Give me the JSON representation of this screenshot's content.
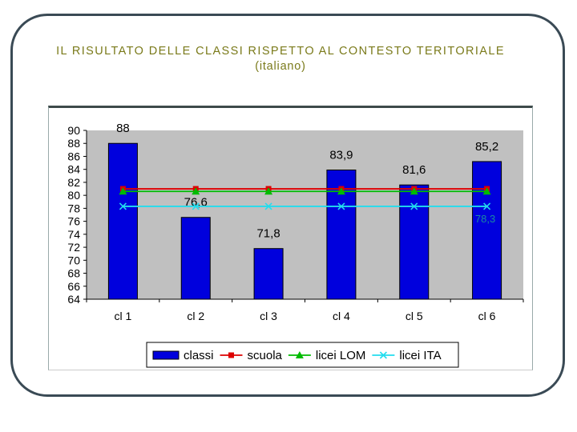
{
  "title": {
    "line1": "IL RISULTATO DELLE CLASSI RISPETTO AL CONTESTO TERITORIALE",
    "line2": "(italiano)"
  },
  "colors": {
    "plot_bg": "#c0c0c0",
    "bar": "#0000dd",
    "scuola": "#dd0000",
    "licei_lom": "#00bb00",
    "licei_ita": "#22ddee",
    "title": "#7a7a1a"
  },
  "chart_data": {
    "type": "bar",
    "categories": [
      "cl 1",
      "cl 2",
      "cl 3",
      "cl 4",
      "cl 5",
      "cl 6"
    ],
    "ylim": [
      64,
      90
    ],
    "yticks": [
      64,
      66,
      68,
      70,
      72,
      74,
      76,
      78,
      80,
      82,
      84,
      86,
      88,
      90
    ],
    "series": [
      {
        "name": "classi",
        "kind": "bar",
        "values": [
          88,
          76.6,
          71.8,
          83.9,
          81.6,
          85.2
        ],
        "labels": [
          "88",
          "76,6",
          "71,8",
          "83,9",
          "81,6",
          "85,2"
        ]
      },
      {
        "name": "scuola",
        "kind": "line",
        "marker": "square",
        "values": [
          81,
          81,
          81,
          81,
          81,
          81
        ]
      },
      {
        "name": "licei LOM",
        "kind": "line",
        "marker": "triangle",
        "values": [
          80.6,
          80.6,
          80.6,
          80.6,
          80.6,
          80.6
        ]
      },
      {
        "name": "licei ITA",
        "kind": "line",
        "marker": "x",
        "values": [
          78.3,
          78.3,
          78.3,
          78.3,
          78.3,
          78.3
        ],
        "annotation": "78,3"
      }
    ],
    "xlabel": "",
    "ylabel": "",
    "legend": "bottom"
  }
}
